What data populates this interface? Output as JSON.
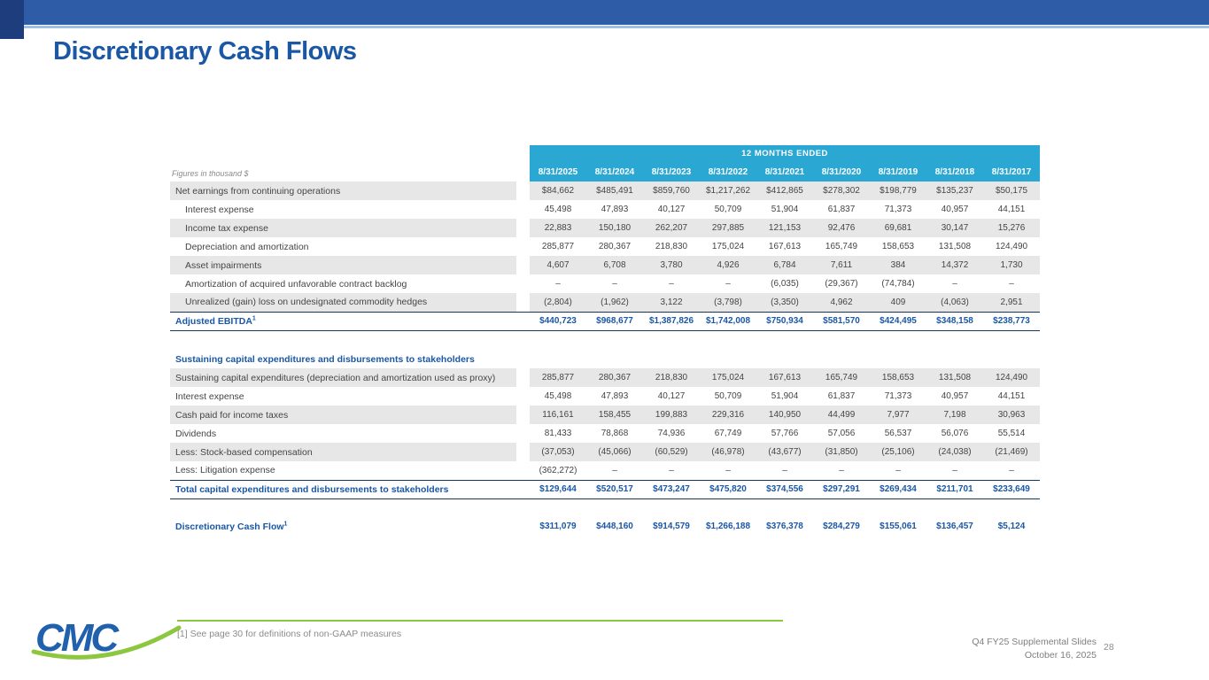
{
  "slide": {
    "title": "Discretionary Cash Flows",
    "logo_text": "CMC",
    "footnote": "[1] See page 30 for definitions of non-GAAP measures",
    "footer": {
      "line1": "Q4 FY25 Supplemental Slides",
      "line2": "October 16, 2025",
      "page_number": "28"
    }
  },
  "colors": {
    "top_bar_blue": "#2e5ca6",
    "top_bar_accent_navy": "#1d3d7d",
    "top_bar_underline": "#9fbfe5",
    "title_blue": "#1a57a5",
    "table_header_teal": "#2aa7d3",
    "row_shade_gray": "#e7e7e7",
    "subtotal_blue": "#1a57a5",
    "rule_navy": "#17365d",
    "green_accent": "#8dc63f",
    "footer_gray": "#7f7f7f"
  },
  "table": {
    "caption": "Figures in thousand $",
    "header_band": "12 MONTHS ENDED",
    "columns": [
      "8/31/2025",
      "8/31/2024",
      "8/31/2023",
      "8/31/2022",
      "8/31/2021",
      "8/31/2020",
      "8/31/2019",
      "8/31/2018",
      "8/31/2017"
    ],
    "rows": [
      {
        "type": "data",
        "shaded": true,
        "indent": 0,
        "label": "Net earnings from continuing operations",
        "values": [
          "$84,662",
          "$485,491",
          "$859,760",
          "$1,217,262",
          "$412,865",
          "$278,302",
          "$198,779",
          "$135,237",
          "$50,175"
        ]
      },
      {
        "type": "data",
        "shaded": false,
        "indent": 1,
        "label": "Interest expense",
        "values": [
          "45,498",
          "47,893",
          "40,127",
          "50,709",
          "51,904",
          "61,837",
          "71,373",
          "40,957",
          "44,151"
        ]
      },
      {
        "type": "data",
        "shaded": true,
        "indent": 1,
        "label": "Income tax expense",
        "values": [
          "22,883",
          "150,180",
          "262,207",
          "297,885",
          "121,153",
          "92,476",
          "69,681",
          "30,147",
          "15,276"
        ]
      },
      {
        "type": "data",
        "shaded": false,
        "indent": 1,
        "label": "Depreciation and amortization",
        "values": [
          "285,877",
          "280,367",
          "218,830",
          "175,024",
          "167,613",
          "165,749",
          "158,653",
          "131,508",
          "124,490"
        ]
      },
      {
        "type": "data",
        "shaded": true,
        "indent": 1,
        "label": "Asset impairments",
        "values": [
          "4,607",
          "6,708",
          "3,780",
          "4,926",
          "6,784",
          "7,611",
          "384",
          "14,372",
          "1,730"
        ]
      },
      {
        "type": "data",
        "shaded": false,
        "indent": 1,
        "label": "Amortization of acquired unfavorable contract backlog",
        "values": [
          "–",
          "–",
          "–",
          "–",
          "(6,035)",
          "(29,367)",
          "(74,784)",
          "–",
          "–"
        ]
      },
      {
        "type": "data",
        "shaded": true,
        "indent": 1,
        "label": "Unrealized (gain) loss on undesignated commodity hedges",
        "values": [
          "(2,804)",
          "(1,962)",
          "3,122",
          "(3,798)",
          "(3,350)",
          "4,962",
          "409",
          "(4,063)",
          "2,951"
        ]
      },
      {
        "type": "subtotal",
        "label": "Adjusted EBITDA",
        "sup": "1",
        "border_top": true,
        "border_bottom": true,
        "values": [
          "$440,723",
          "$968,677",
          "$1,387,826",
          "$1,742,008",
          "$750,934",
          "$581,570",
          "$424,495",
          "$348,158",
          "$238,773"
        ]
      },
      {
        "type": "spacer",
        "height": 22
      },
      {
        "type": "section",
        "label": "Sustaining capital expenditures and disbursements to stakeholders"
      },
      {
        "type": "data",
        "shaded": true,
        "indent": 0,
        "label": "Sustaining capital expenditures (depreciation and amortization used as proxy)",
        "values": [
          "285,877",
          "280,367",
          "218,830",
          "175,024",
          "167,613",
          "165,749",
          "158,653",
          "131,508",
          "124,490"
        ]
      },
      {
        "type": "data",
        "shaded": false,
        "indent": 0,
        "label": "Interest expense",
        "values": [
          "45,498",
          "47,893",
          "40,127",
          "50,709",
          "51,904",
          "61,837",
          "71,373",
          "40,957",
          "44,151"
        ]
      },
      {
        "type": "data",
        "shaded": true,
        "indent": 0,
        "label": "Cash paid for income taxes",
        "values": [
          "116,161",
          "158,455",
          "199,883",
          "229,316",
          "140,950",
          "44,499",
          "7,977",
          "7,198",
          "30,963"
        ]
      },
      {
        "type": "data",
        "shaded": false,
        "indent": 0,
        "label": "Dividends",
        "values": [
          "81,433",
          "78,868",
          "74,936",
          "67,749",
          "57,766",
          "57,056",
          "56,537",
          "56,076",
          "55,514"
        ]
      },
      {
        "type": "data",
        "shaded": true,
        "indent": 0,
        "label": "Less: Stock-based compensation",
        "values": [
          "(37,053)",
          "(45,066)",
          "(60,529)",
          "(46,978)",
          "(43,677)",
          "(31,850)",
          "(25,106)",
          "(24,038)",
          "(21,469)"
        ]
      },
      {
        "type": "data",
        "shaded": false,
        "indent": 0,
        "label": "Less: Litigation expense",
        "values": [
          "(362,272)",
          "–",
          "–",
          "–",
          "–",
          "–",
          "–",
          "–",
          "–"
        ]
      },
      {
        "type": "subtotal",
        "label": "Total capital expenditures and disbursements to stakeholders",
        "border_top": true,
        "border_bottom": true,
        "values": [
          "$129,644",
          "$520,517",
          "$473,247",
          "$475,820",
          "$374,556",
          "$297,291",
          "$269,434",
          "$211,701",
          "$233,649"
        ]
      },
      {
        "type": "spacer",
        "height": 15
      },
      {
        "type": "subtotal",
        "label": "Discretionary Cash Flow",
        "sup": "1",
        "values": [
          "$311,079",
          "$448,160",
          "$914,579",
          "$1,266,188",
          "$376,378",
          "$284,279",
          "$155,061",
          "$136,457",
          "$5,124"
        ]
      }
    ]
  }
}
